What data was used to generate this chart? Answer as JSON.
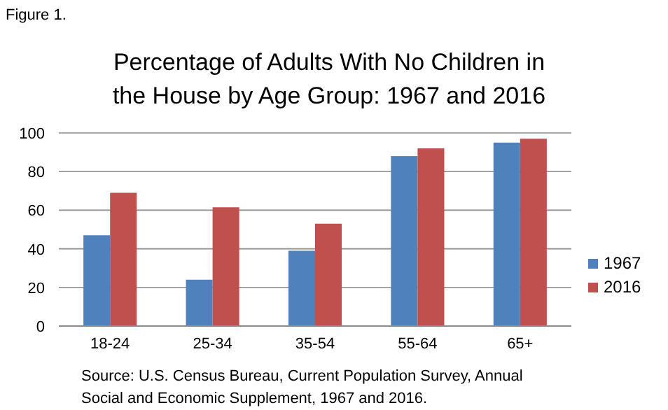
{
  "chart_data": {
    "type": "bar",
    "title": "Percentage of Adults With No Children in the House by Age Group: 1967 and 2016",
    "categories": [
      "18-24",
      "25-34",
      "35-54",
      "55-64",
      "65+"
    ],
    "series": [
      {
        "name": "1967",
        "color": "#4f81bd",
        "values": [
          47,
          24,
          39,
          88,
          95
        ]
      },
      {
        "name": "2016",
        "color": "#c0504d",
        "values": [
          69,
          61.5,
          53,
          92,
          97
        ]
      }
    ],
    "ylim": [
      0,
      100
    ],
    "yticks": [
      0,
      20,
      40,
      60,
      80,
      100
    ],
    "grid": "y",
    "legend": "right",
    "annotations": [
      "Figure 1.",
      "Source: U.S. Census Bureau, Current Population Survey, Annual Social and Economic Supplement, 1967 and 2016."
    ]
  }
}
